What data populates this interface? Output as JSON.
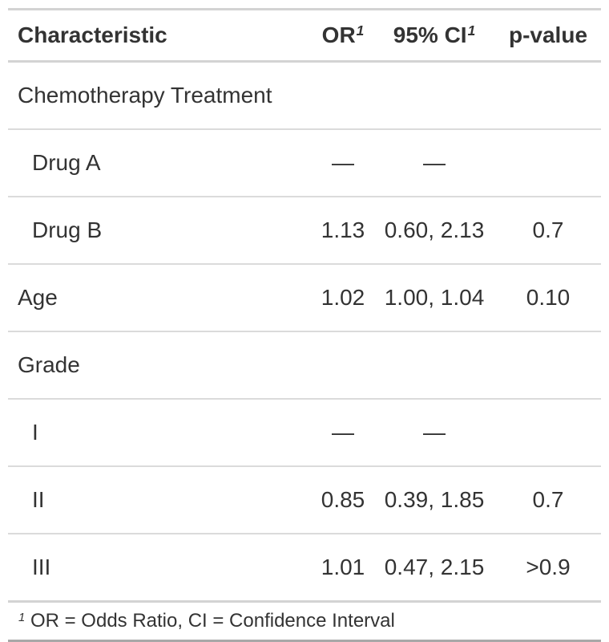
{
  "chart_data": {
    "type": "table",
    "description": "Logistic regression summary table (odds ratios with 95% confidence intervals and p-values)",
    "columns": [
      "Characteristic",
      "OR",
      "95% CI",
      "p-value"
    ],
    "header": {
      "characteristic": "Characteristic",
      "or": "OR",
      "or_sup": "1",
      "ci": "95% CI",
      "ci_sup": "1",
      "p": "p-value"
    },
    "rows": [
      {
        "label": "Chemotherapy Treatment",
        "indent": false,
        "or": "",
        "ci": "",
        "p": ""
      },
      {
        "label": "Drug A",
        "indent": true,
        "or": "—",
        "ci": "—",
        "p": ""
      },
      {
        "label": "Drug B",
        "indent": true,
        "or": "1.13",
        "ci": "0.60, 2.13",
        "p": "0.7"
      },
      {
        "label": "Age",
        "indent": false,
        "or": "1.02",
        "ci": "1.00, 1.04",
        "p": "0.10"
      },
      {
        "label": "Grade",
        "indent": false,
        "or": "",
        "ci": "",
        "p": ""
      },
      {
        "label": "I",
        "indent": true,
        "or": "—",
        "ci": "—",
        "p": ""
      },
      {
        "label": "II",
        "indent": true,
        "or": "0.85",
        "ci": "0.39, 1.85",
        "p": "0.7"
      },
      {
        "label": "III",
        "indent": true,
        "or": "1.01",
        "ci": "0.47, 2.15",
        "p": ">0.9"
      }
    ],
    "footnote": {
      "marker": "1",
      "text": "OR = Odds Ratio, CI = Confidence Interval"
    }
  },
  "colors": {
    "text": "#333333",
    "border_light": "#d3d3d3",
    "border_row": "#dbdbdb",
    "border_bottom": "#a8a8a8",
    "background": "#ffffff"
  }
}
